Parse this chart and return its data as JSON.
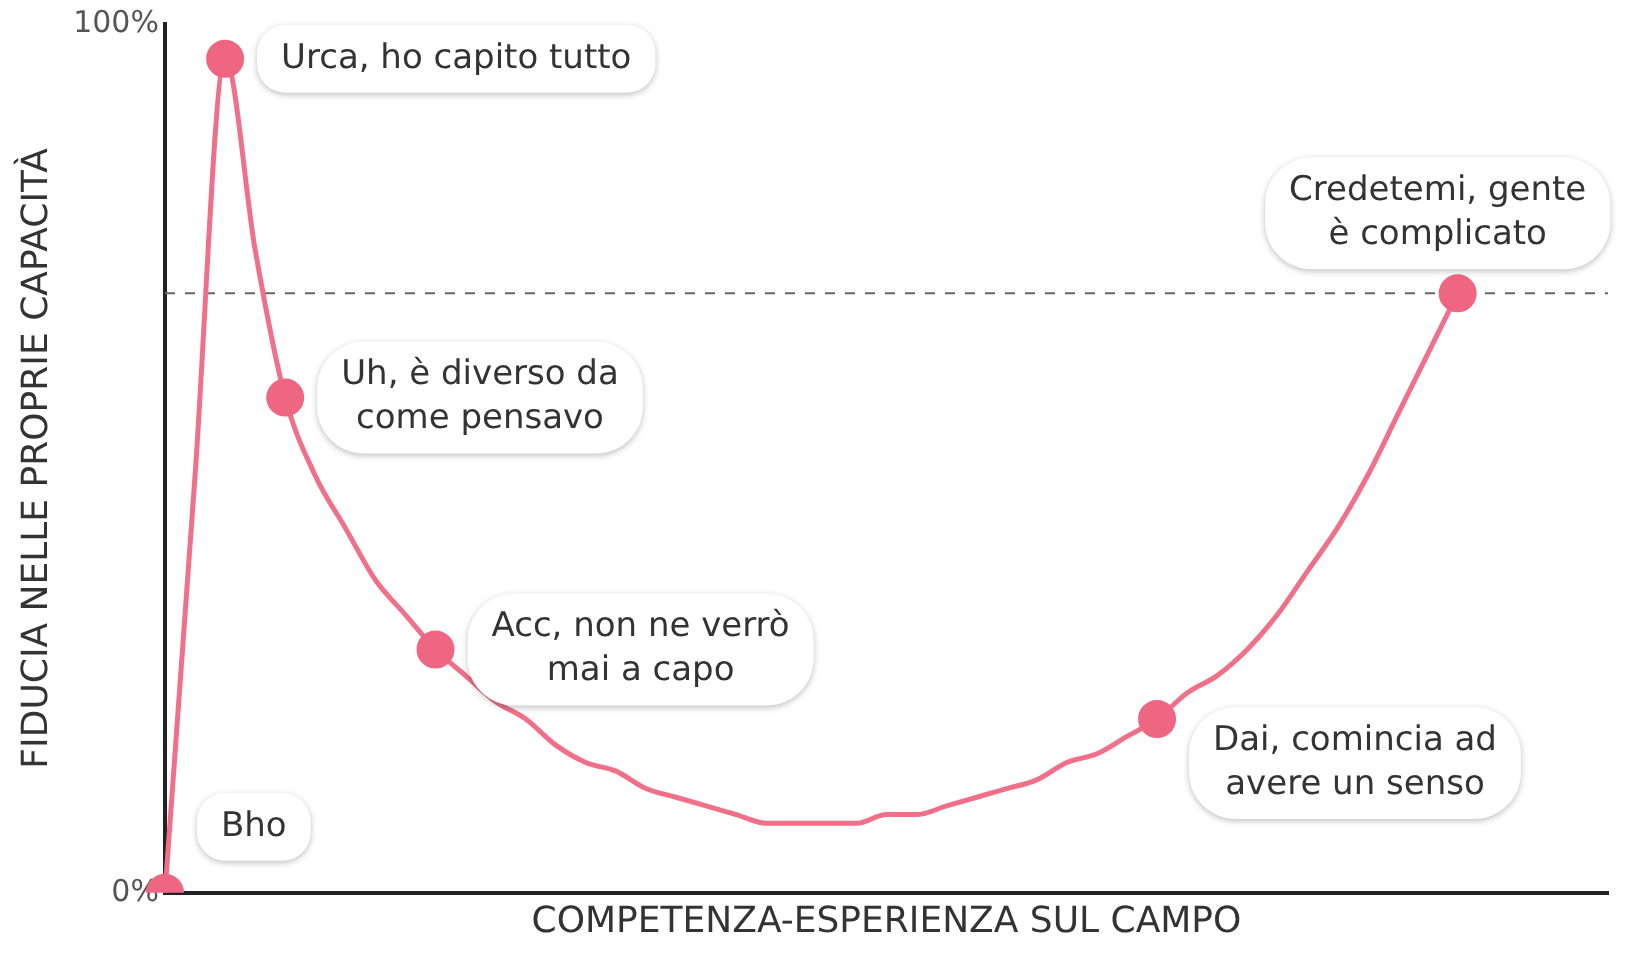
{
  "chart_data": {
    "type": "line",
    "xlabel": "COMPETENZA-ESPERIENZA SUL CAMPO",
    "ylabel": "FIDUCIA NELLE PROPRIE CAPACITÀ",
    "categories": [
      null,
      null,
      null,
      null,
      null,
      null,
      null,
      null,
      null,
      null,
      null,
      null,
      null,
      null,
      null,
      null,
      null,
      null,
      null,
      null,
      null,
      null,
      null,
      null,
      null,
      null,
      null,
      null,
      null,
      null,
      null,
      null,
      null,
      null,
      null,
      null,
      null,
      null,
      null,
      null,
      null,
      null,
      null,
      null,
      null,
      null,
      null,
      null,
      null
    ],
    "ylim": [
      0,
      100
    ],
    "yticks": [
      {
        "value": 0,
        "label": "0%"
      },
      {
        "value": 100,
        "label": "100%"
      }
    ],
    "tick_labels": "y",
    "grid": false,
    "legend": false,
    "series": [
      {
        "color": "#ef7088",
        "marker": "none",
        "values": [
          0,
          48,
          96,
          74,
          57,
          48,
          42,
          36,
          32,
          28,
          25,
          22,
          20,
          17,
          15,
          14,
          12,
          11,
          10,
          9,
          8,
          8,
          8,
          8,
          9,
          9,
          10,
          11,
          12,
          13,
          15,
          16,
          18,
          20,
          23,
          25,
          28,
          32,
          37,
          42,
          48,
          55,
          62,
          69,
          null,
          null,
          null,
          null,
          null
        ]
      },
      {
        "type": "scatter",
        "color": "#ee6682",
        "marker": "circle",
        "values": [
          0,
          null,
          96,
          null,
          57,
          null,
          null,
          null,
          null,
          28,
          null,
          null,
          null,
          null,
          null,
          null,
          null,
          null,
          null,
          null,
          null,
          null,
          null,
          null,
          null,
          null,
          null,
          null,
          null,
          null,
          null,
          null,
          null,
          20,
          null,
          null,
          null,
          null,
          null,
          null,
          null,
          null,
          null,
          69,
          null,
          null,
          null,
          null,
          null
        ],
        "value_labels": [
          "Bho",
          null,
          "Urca, ho capito tutto",
          null,
          "Uh, è diverso da\ncome pensavo",
          null,
          null,
          null,
          null,
          "Acc, non ne verrò\nmai a capo",
          null,
          null,
          null,
          null,
          null,
          null,
          null,
          null,
          null,
          null,
          null,
          null,
          null,
          null,
          null,
          null,
          null,
          null,
          null,
          null,
          null,
          null,
          null,
          "Dai, comincia ad\navere un senso",
          null,
          null,
          null,
          null,
          null,
          null,
          null,
          null,
          null,
          "Credetemi, gente\nè complicato",
          null,
          null,
          null,
          null,
          null
        ]
      }
    ],
    "ref_lines": [
      {
        "axis": "y",
        "value": 69,
        "color": "#666666",
        "line_style": "dashed"
      }
    ]
  }
}
